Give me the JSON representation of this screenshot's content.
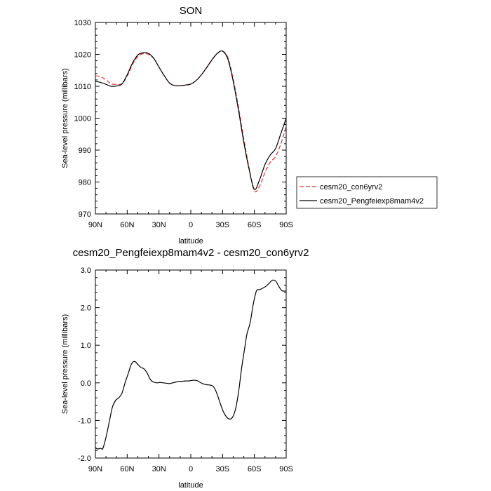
{
  "chart_data": [
    {
      "type": "line",
      "title": "SON",
      "xlabel": "latitude",
      "ylabel": "Sea-level pressure (millibars)",
      "xlim": [
        90,
        -90
      ],
      "ylim": [
        970,
        1030
      ],
      "x_ticks": [
        {
          "value": 90,
          "label": "90N"
        },
        {
          "value": 60,
          "label": "60N"
        },
        {
          "value": 30,
          "label": "30N"
        },
        {
          "value": 0,
          "label": "0"
        },
        {
          "value": -30,
          "label": "30S"
        },
        {
          "value": -60,
          "label": "60S"
        },
        {
          "value": -90,
          "label": "90S"
        }
      ],
      "y_ticks": [
        {
          "value": 1030,
          "label": "1030"
        },
        {
          "value": 1020,
          "label": "1020"
        },
        {
          "value": 1010,
          "label": "1010"
        },
        {
          "value": 1000,
          "label": "1000"
        },
        {
          "value": 990,
          "label": "990"
        },
        {
          "value": 980,
          "label": "980"
        },
        {
          "value": 970,
          "label": "970"
        }
      ],
      "legend": {
        "placement": "right"
      },
      "series": [
        {
          "name": "cesm20_con6yrv2",
          "color": "#e8302a",
          "dash": "dashed",
          "x": [
            90,
            85,
            80,
            75,
            70,
            65,
            60,
            55,
            50,
            45,
            40,
            35,
            30,
            25,
            20,
            15,
            10,
            5,
            0,
            -5,
            -10,
            -15,
            -20,
            -25,
            -30,
            -35,
            -40,
            -45,
            -50,
            -55,
            -60,
            -65,
            -70,
            -75,
            -80,
            -85,
            -90
          ],
          "y": [
            1013.3,
            1013.0,
            1012.0,
            1010.8,
            1010.6,
            1010.8,
            1013.2,
            1016.8,
            1019.3,
            1020.2,
            1020.0,
            1018.7,
            1016.0,
            1013.3,
            1011.0,
            1010.2,
            1010.2,
            1010.3,
            1010.7,
            1011.8,
            1013.6,
            1015.8,
            1018.2,
            1020.3,
            1021.0,
            1019.0,
            1012.3,
            1003.5,
            993.5,
            984.5,
            977.2,
            978.8,
            983.0,
            986.2,
            988.0,
            992.0,
            997.5
          ]
        },
        {
          "name": "cesm20_Pengfeiexp8mam4v2",
          "color": "#000000",
          "dash": "solid",
          "x": [
            90,
            85,
            80,
            75,
            70,
            65,
            60,
            55,
            50,
            45,
            40,
            35,
            30,
            25,
            20,
            15,
            10,
            5,
            0,
            -5,
            -10,
            -15,
            -20,
            -25,
            -30,
            -35,
            -40,
            -45,
            -50,
            -55,
            -60,
            -65,
            -70,
            -75,
            -80,
            -85,
            -90
          ],
          "y": [
            1011.6,
            1011.2,
            1010.6,
            1010.0,
            1010.1,
            1010.7,
            1013.6,
            1017.3,
            1019.8,
            1020.5,
            1020.3,
            1018.8,
            1016.0,
            1013.3,
            1011.0,
            1010.2,
            1010.2,
            1010.4,
            1010.7,
            1011.8,
            1013.6,
            1015.9,
            1018.3,
            1020.3,
            1021.0,
            1018.5,
            1011.6,
            1002.5,
            992.5,
            984.0,
            977.7,
            980.8,
            985.5,
            988.5,
            990.5,
            995.2,
            1000.0
          ]
        }
      ]
    },
    {
      "type": "line",
      "title": "cesm20_Pengfeiexp8mam4v2 - cesm20_con6yrv2",
      "xlabel": "latitude",
      "ylabel": "Sea-level pressure (millibars)",
      "xlim": [
        90,
        -90
      ],
      "ylim": [
        -2.0,
        3.0
      ],
      "x_ticks": [
        {
          "value": 90,
          "label": "90N"
        },
        {
          "value": 60,
          "label": "60N"
        },
        {
          "value": 30,
          "label": "30N"
        },
        {
          "value": 0,
          "label": "0"
        },
        {
          "value": -30,
          "label": "30S"
        },
        {
          "value": -60,
          "label": "60S"
        },
        {
          "value": -90,
          "label": "90S"
        }
      ],
      "y_ticks": [
        {
          "value": 3.0,
          "label": "3.0"
        },
        {
          "value": 2.0,
          "label": "2.0"
        },
        {
          "value": 1.0,
          "label": "1.0"
        },
        {
          "value": 0.0,
          "label": "0.0"
        },
        {
          "value": -1.0,
          "label": "-1.0"
        },
        {
          "value": -2.0,
          "label": "-2.0"
        }
      ],
      "series": [
        {
          "color": "#000000",
          "dash": "solid",
          "x": [
            90,
            88,
            85,
            83,
            80,
            77,
            74,
            71,
            68,
            65,
            62,
            59,
            56,
            53,
            50,
            47,
            44,
            41,
            38,
            35,
            32,
            29,
            26,
            23,
            20,
            17,
            14,
            11,
            8,
            5,
            2,
            0,
            -3,
            -6,
            -9,
            -12,
            -15,
            -18,
            -21,
            -24,
            -27,
            -30,
            -33,
            -36,
            -39,
            -42,
            -45,
            -48,
            -51,
            -53,
            -56,
            -59,
            -62,
            -65,
            -68,
            -71,
            -74,
            -77,
            -80,
            -82,
            -84,
            -86,
            -88,
            -90
          ],
          "y": [
            -1.72,
            -1.76,
            -1.74,
            -1.75,
            -1.45,
            -1.05,
            -0.65,
            -0.47,
            -0.4,
            -0.28,
            0.0,
            0.25,
            0.5,
            0.57,
            0.49,
            0.41,
            0.37,
            0.25,
            0.08,
            0.02,
            0.0,
            0.01,
            0.0,
            -0.01,
            -0.02,
            0.0,
            0.02,
            0.04,
            0.04,
            0.05,
            0.05,
            0.06,
            0.07,
            0.06,
            0.01,
            -0.03,
            -0.05,
            -0.06,
            -0.09,
            -0.24,
            -0.48,
            -0.72,
            -0.88,
            -0.96,
            -0.93,
            -0.72,
            -0.26,
            0.4,
            0.95,
            1.3,
            1.6,
            2.1,
            2.45,
            2.48,
            2.52,
            2.57,
            2.65,
            2.73,
            2.71,
            2.62,
            2.52,
            2.45,
            2.44,
            2.44
          ]
        }
      ]
    }
  ]
}
